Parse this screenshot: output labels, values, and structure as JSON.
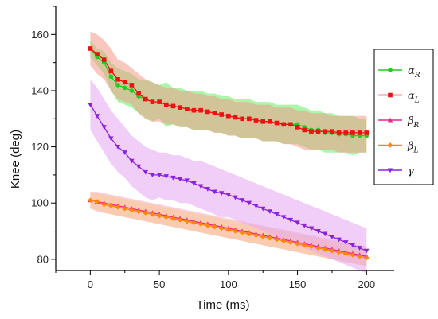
{
  "chart_data": {
    "type": "line",
    "xlabel": "Time (ms)",
    "ylabel": "Knee (deg)",
    "xlim": [
      -25,
      220
    ],
    "ylim": [
      76,
      170
    ],
    "xticks": [
      0,
      50,
      100,
      150,
      200
    ],
    "yticks": [
      80,
      100,
      120,
      140,
      160
    ],
    "grid": false,
    "legend_position": "right",
    "series": [
      {
        "name": "α_R",
        "symbol": "α",
        "sub": "R",
        "color": "#22cc22",
        "band": "#66ee66",
        "marker": "circle",
        "x": [
          0,
          5,
          10,
          15,
          20,
          25,
          30,
          35,
          40,
          45,
          50,
          55,
          60,
          65,
          70,
          75,
          80,
          85,
          90,
          95,
          100,
          105,
          110,
          115,
          120,
          125,
          130,
          135,
          140,
          145,
          150,
          155,
          160,
          165,
          170,
          175,
          180,
          185,
          190,
          195,
          200
        ],
        "y": [
          155,
          152,
          150,
          145,
          142,
          141,
          140,
          138,
          137,
          136,
          136,
          135,
          134.5,
          134,
          133.5,
          133,
          133,
          132.5,
          132,
          131.5,
          131,
          130.5,
          130,
          130,
          129.5,
          129,
          129,
          128.5,
          128,
          128,
          128,
          127,
          126,
          126,
          125,
          125,
          124.5,
          124.5,
          124,
          124,
          124
        ],
        "band_upper": [
          158,
          155,
          154,
          150,
          148,
          147,
          146,
          144,
          144,
          143,
          142,
          143,
          141,
          141,
          140,
          140,
          140,
          139,
          139,
          138,
          138,
          137,
          137,
          137,
          136,
          136,
          136,
          135,
          135,
          135,
          135,
          134,
          133,
          133,
          132,
          132,
          131,
          131,
          131,
          130,
          130
        ],
        "band_lower": [
          152,
          149,
          146,
          140,
          136,
          135,
          134,
          132,
          130,
          129,
          130,
          127,
          128,
          127,
          127,
          126,
          126,
          126,
          125,
          125,
          124,
          124,
          123,
          123,
          123,
          122,
          122,
          122,
          121,
          121,
          121,
          120,
          119,
          119,
          118,
          118,
          118,
          118,
          117,
          118,
          118
        ]
      },
      {
        "name": "α_L",
        "symbol": "α",
        "sub": "L",
        "color": "#ee1111",
        "band": "#f29a8a",
        "marker": "square",
        "x": [
          0,
          5,
          10,
          15,
          20,
          25,
          30,
          35,
          40,
          45,
          50,
          55,
          60,
          65,
          70,
          75,
          80,
          85,
          90,
          95,
          100,
          105,
          110,
          115,
          120,
          125,
          130,
          135,
          140,
          145,
          150,
          155,
          160,
          165,
          170,
          175,
          180,
          185,
          190,
          195,
          200
        ],
        "y": [
          155,
          153,
          151,
          147,
          144,
          143,
          142,
          139,
          137,
          136,
          136,
          135,
          134.5,
          134,
          133.5,
          133,
          133,
          132.5,
          132,
          131.5,
          131,
          130.5,
          130,
          130,
          129.5,
          129,
          129,
          128.5,
          128,
          128,
          127,
          126,
          125.5,
          125.5,
          125.5,
          125.5,
          125,
          125,
          125,
          125,
          125
        ],
        "band_upper": [
          161,
          160,
          158,
          155,
          151,
          150,
          148,
          146,
          144,
          143,
          142,
          141,
          141,
          140,
          140,
          139,
          139,
          138,
          138,
          137,
          137,
          136,
          136,
          136,
          135,
          135,
          135,
          134,
          134,
          134,
          133,
          133,
          132,
          132,
          132,
          131,
          131,
          131,
          131,
          131,
          131
        ],
        "band_lower": [
          149,
          146,
          144,
          140,
          137,
          136,
          135,
          132,
          130,
          129,
          129,
          128,
          128,
          127,
          127,
          126,
          126,
          126,
          125,
          125,
          124,
          124,
          123,
          123,
          123,
          122,
          122,
          122,
          121,
          121,
          120,
          119,
          119,
          119,
          119,
          119,
          118,
          118,
          118,
          118,
          118
        ]
      },
      {
        "name": "β_R",
        "symbol": "β",
        "sub": "R",
        "color": "#ee2288",
        "band": "#f5a9c9",
        "marker": "triangle-up",
        "x": [
          0,
          5,
          10,
          15,
          20,
          25,
          30,
          35,
          40,
          45,
          50,
          55,
          60,
          65,
          70,
          75,
          80,
          85,
          90,
          95,
          100,
          105,
          110,
          115,
          120,
          125,
          130,
          135,
          140,
          145,
          150,
          155,
          160,
          165,
          170,
          175,
          180,
          185,
          190,
          195,
          200
        ],
        "y": [
          101,
          100.5,
          100,
          99.5,
          99,
          98.5,
          98,
          97.5,
          97,
          96.5,
          96,
          95.5,
          95,
          94.5,
          94,
          93.5,
          93,
          92.5,
          92,
          91.5,
          91,
          90.5,
          90,
          89.5,
          89,
          88.5,
          88,
          87.5,
          87,
          86.5,
          86,
          85.5,
          85,
          84.5,
          84,
          83.5,
          83,
          82.5,
          82,
          81.5,
          81
        ],
        "band_upper": [
          104,
          104,
          103.5,
          103,
          102.5,
          102,
          101.5,
          101,
          100.5,
          100,
          99.5,
          99,
          98.5,
          98,
          97.5,
          97,
          96.5,
          96,
          95.5,
          95,
          94.5,
          94,
          93.5,
          93,
          92.5,
          92,
          91.5,
          91,
          90.5,
          90,
          89.5,
          89,
          88.5,
          88,
          87.5,
          87,
          86.5,
          86,
          85.5,
          85,
          84.5
        ],
        "band_lower": [
          98,
          97,
          96.5,
          96,
          95.5,
          95,
          94.5,
          94,
          93.5,
          93,
          92.5,
          92,
          91.5,
          91,
          90.5,
          90,
          89.5,
          89,
          88.5,
          88,
          87.5,
          87,
          86.5,
          86,
          85.5,
          85,
          84.5,
          84,
          83.5,
          83,
          82.5,
          82,
          81.5,
          81,
          80.5,
          80,
          79.5,
          79,
          78.5,
          78,
          77.5
        ]
      },
      {
        "name": "β_L",
        "symbol": "β",
        "sub": "L",
        "color": "#ff8800",
        "band": "#f7c98a",
        "marker": "diamond",
        "x": [
          0,
          5,
          10,
          15,
          20,
          25,
          30,
          35,
          40,
          45,
          50,
          55,
          60,
          65,
          70,
          75,
          80,
          85,
          90,
          95,
          100,
          105,
          110,
          115,
          120,
          125,
          130,
          135,
          140,
          145,
          150,
          155,
          160,
          165,
          170,
          175,
          180,
          185,
          190,
          195,
          200
        ],
        "y": [
          101,
          100.5,
          99.5,
          99,
          98.5,
          98,
          97.5,
          97,
          96.5,
          96,
          95.5,
          95,
          94.5,
          94,
          93.5,
          93,
          92.5,
          92,
          91.5,
          91,
          90.5,
          90,
          89.5,
          89,
          88.5,
          88,
          87.5,
          87,
          86.5,
          86,
          85.5,
          85,
          84.5,
          84,
          83.5,
          83,
          82.5,
          82,
          81.5,
          81,
          80.5
        ],
        "band_upper": [
          104,
          103.5,
          103,
          102.5,
          102,
          101.5,
          101,
          100.5,
          100,
          99.5,
          99,
          98.5,
          98,
          97.5,
          97,
          96.5,
          96,
          95.5,
          95,
          94.5,
          94,
          93.5,
          93,
          92.5,
          92,
          91.5,
          91,
          90.5,
          90,
          89.5,
          89,
          88.5,
          88,
          87.5,
          87,
          86.5,
          86,
          85.5,
          85,
          84.5,
          84
        ],
        "band_lower": [
          98,
          97.5,
          96.5,
          96,
          95.5,
          95,
          94.5,
          94,
          93.5,
          93,
          92.5,
          92,
          91.5,
          91,
          90.5,
          90,
          89.5,
          89,
          88.5,
          88,
          87.5,
          87,
          86.5,
          86,
          85.5,
          85,
          84.5,
          84,
          83.5,
          83,
          82.5,
          82,
          81.5,
          81,
          80.5,
          80,
          79.5,
          79,
          78.5,
          78,
          77.5
        ]
      },
      {
        "name": "γ",
        "symbol": "γ",
        "sub": "",
        "color": "#8822dd",
        "band": "#e6a6f0",
        "marker": "triangle-down",
        "x": [
          0,
          5,
          10,
          15,
          20,
          25,
          30,
          35,
          40,
          45,
          50,
          55,
          60,
          65,
          70,
          75,
          80,
          85,
          90,
          95,
          100,
          105,
          110,
          115,
          120,
          125,
          130,
          135,
          140,
          145,
          150,
          155,
          160,
          165,
          170,
          175,
          180,
          185,
          190,
          195,
          200
        ],
        "y": [
          135,
          131,
          127,
          123,
          120,
          118,
          115,
          113,
          111,
          110,
          110,
          109.5,
          109,
          108.5,
          108,
          107,
          106,
          105,
          104,
          103.5,
          103,
          102,
          101,
          100,
          99,
          98,
          97,
          96,
          95,
          94,
          93,
          92,
          91,
          90,
          89,
          88,
          87,
          86,
          85,
          84,
          83
        ],
        "band_upper": [
          144,
          141,
          137,
          133,
          130,
          127,
          124,
          122,
          120,
          119,
          118,
          118,
          117,
          117,
          116,
          115,
          115,
          114,
          113,
          112,
          111,
          110,
          109,
          108,
          107,
          106,
          105,
          104,
          103,
          102,
          101,
          100,
          99,
          98,
          97,
          96,
          95,
          94,
          93,
          92,
          91
        ],
        "band_lower": [
          126,
          122,
          118,
          114,
          111,
          109,
          106,
          104,
          102,
          101,
          102,
          101,
          101,
          100,
          100,
          99,
          98,
          97,
          96,
          95,
          95,
          94,
          93,
          92,
          91,
          90,
          89,
          88,
          87,
          86,
          85,
          84,
          83,
          82,
          81,
          80,
          79,
          78,
          77,
          76,
          75
        ]
      }
    ]
  }
}
